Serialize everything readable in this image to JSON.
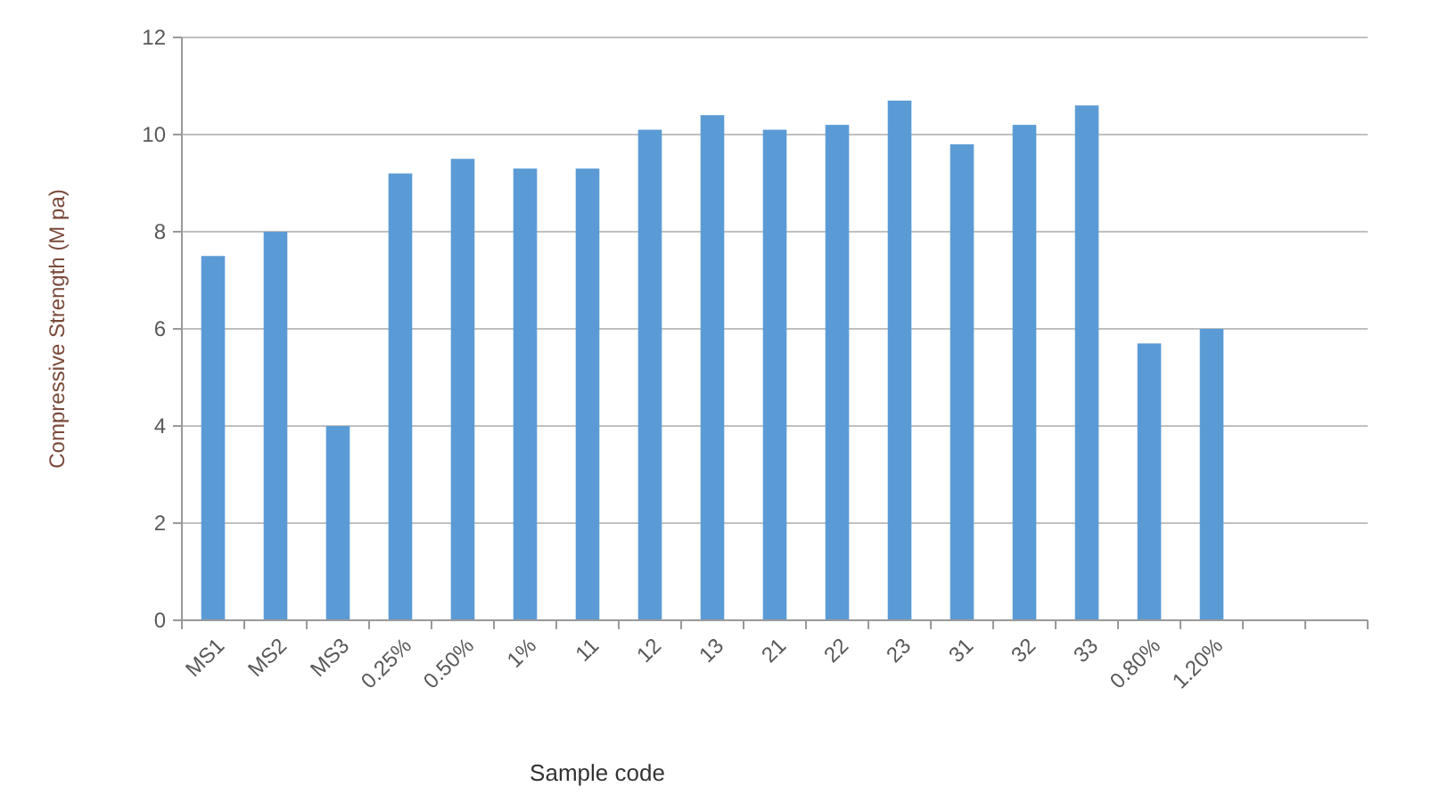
{
  "chart_data": {
    "type": "bar",
    "xlabel": "Sample code",
    "ylabel": "Compressive Strength (M pa)",
    "categories": [
      "MS1",
      "MS2",
      "MS3",
      "0.25%",
      "0.50%",
      "1%",
      "11",
      "12",
      "13",
      "21",
      "22",
      "23",
      "31",
      "32",
      "33",
      "0.80%",
      "1.20%",
      null,
      null
    ],
    "values": [
      7.5,
      8.0,
      4.0,
      9.2,
      9.5,
      9.3,
      9.3,
      10.1,
      10.4,
      10.1,
      10.2,
      10.7,
      9.8,
      10.2,
      10.6,
      5.7,
      6.0,
      null,
      null
    ],
    "color": "#5b9bd5",
    "ylim": [
      0,
      12
    ],
    "yticks": [
      0,
      2,
      4,
      6,
      8,
      10,
      12
    ],
    "grid": "y"
  }
}
